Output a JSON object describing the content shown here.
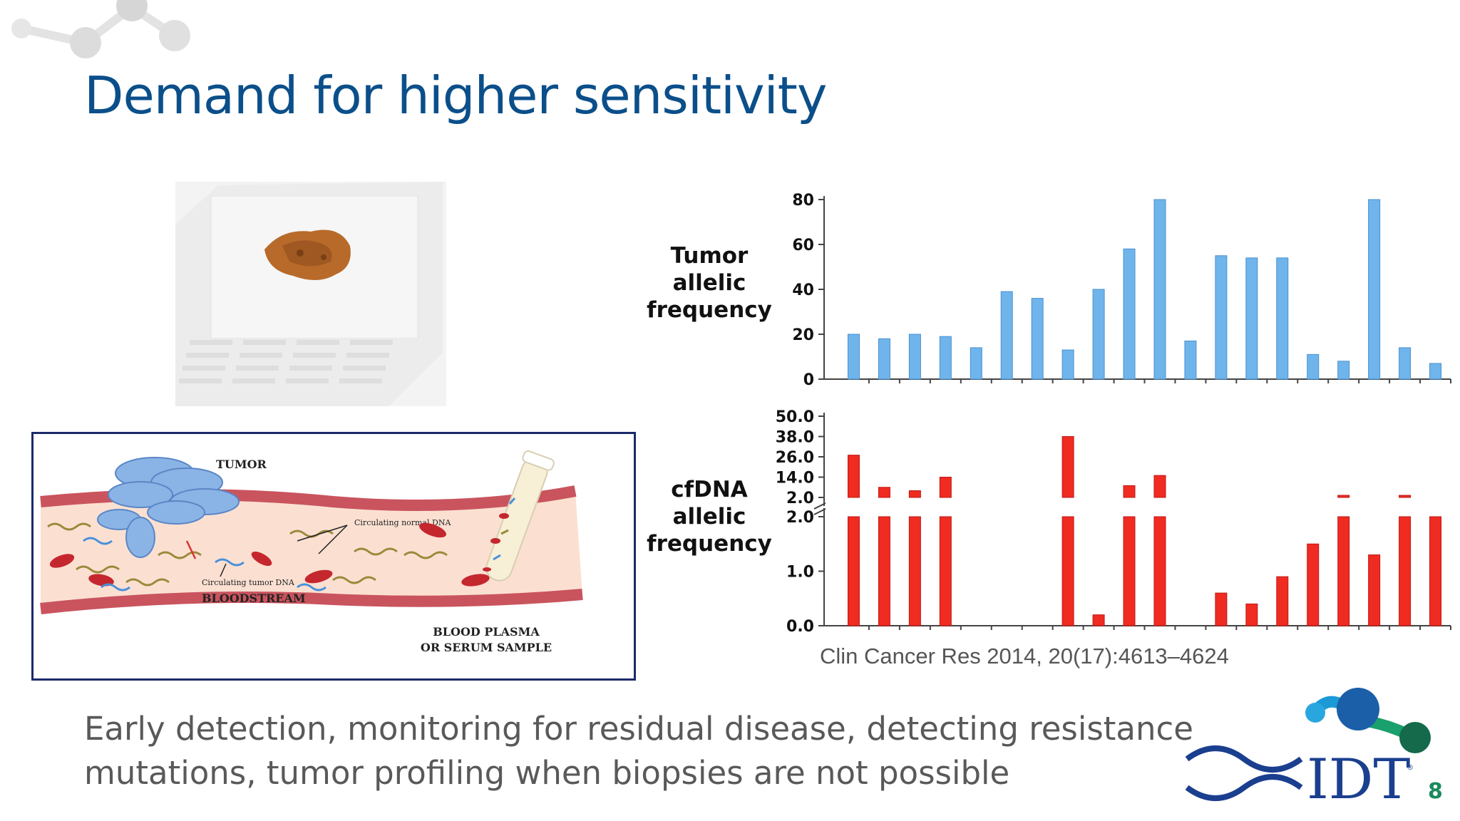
{
  "slide": {
    "title": "Demand for higher sensitivity",
    "citation": "Clin Cancer Res 2014, 20(17):4613–4624",
    "body": "Early detection, monitoring for residual disease, detecting resistance mutations, tumor profiling when biopsies are not possible",
    "page_number": "8"
  },
  "diagram": {
    "tumor": "TUMOR",
    "circ_normal": "Circulating normal DNA",
    "circ_tumor": "Circulating tumor DNA",
    "bloodstream": "BLOODSTREAM",
    "sample_line1": "BLOOD PLASMA",
    "sample_line2": "OR SERUM SAMPLE"
  },
  "logo": {
    "text": "IDT",
    "registered": "®"
  },
  "colors": {
    "title": "#0b4f8a",
    "bar_top": "#6fb5ec",
    "bar_bottom": "#ef2b22",
    "page_number": "#1a8a5a"
  },
  "chart_data": [
    {
      "type": "bar",
      "ylabel_lines": [
        "Tumor",
        "allelic",
        "frequency"
      ],
      "ytick_labels": [
        "0",
        "20",
        "40",
        "60",
        "80"
      ],
      "ylim": [
        0,
        80
      ],
      "color": "#6fb5ec",
      "values": [
        20,
        18,
        20,
        19,
        14,
        39,
        36,
        13,
        40,
        58,
        80,
        17,
        55,
        54,
        54,
        11,
        8,
        80,
        14,
        7
      ]
    },
    {
      "type": "bar",
      "axis_break": true,
      "ylabel_lines": [
        "cfDNA",
        "allelic",
        "frequency"
      ],
      "lower_ytick_labels": [
        "0.0",
        "1.0",
        "2.0"
      ],
      "upper_ytick_labels": [
        "2.0",
        "14.0",
        "26.0",
        "38.0",
        "50.0"
      ],
      "lower_ylim": [
        0,
        2.0
      ],
      "upper_ylim": [
        2.0,
        50.0
      ],
      "color": "#ef2b22",
      "values": [
        27,
        8,
        6,
        14,
        0,
        0,
        0,
        38,
        0.2,
        9,
        15,
        0,
        0.6,
        0.4,
        0.9,
        1.5,
        2.7,
        1.3,
        2.6,
        2.0
      ]
    }
  ]
}
